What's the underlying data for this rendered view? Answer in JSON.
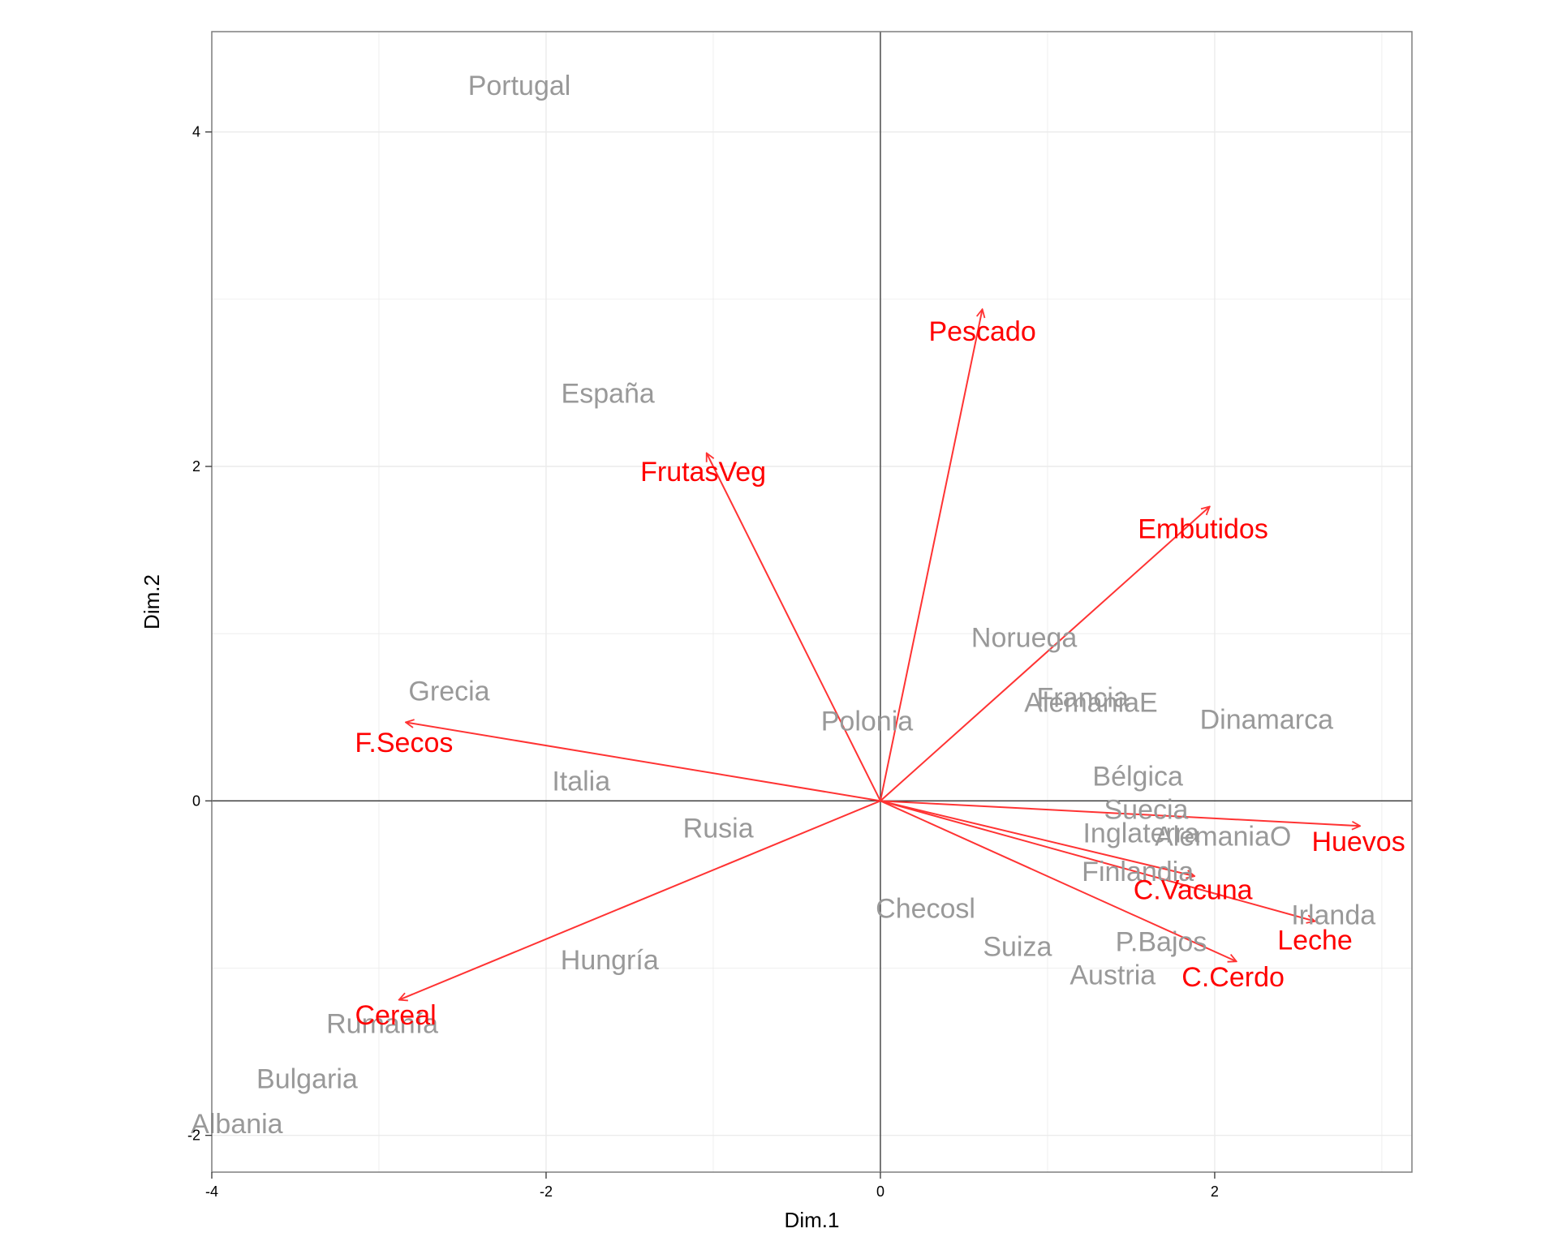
{
  "chart_data": {
    "type": "scatter",
    "subtype": "pca-biplot",
    "title": "",
    "xlabel": "Dim.1",
    "ylabel": "Dim.2",
    "xlim": [
      -4.0,
      3.18
    ],
    "ylim": [
      -2.22,
      4.6
    ],
    "x_ticks": [
      {
        "value": -4,
        "label": "-4"
      },
      {
        "value": -2,
        "label": "-2"
      },
      {
        "value": 0,
        "label": "0"
      },
      {
        "value": 2,
        "label": "2"
      }
    ],
    "y_ticks": [
      {
        "value": -2,
        "label": "-2"
      },
      {
        "value": 0,
        "label": "0"
      },
      {
        "value": 2,
        "label": "2"
      },
      {
        "value": 4,
        "label": "4"
      }
    ],
    "grid": true,
    "reference_lines": {
      "x": 0,
      "y": 0
    },
    "colors": {
      "countries": "#999999",
      "variables": "#ff0000",
      "arrows": "#ff3333",
      "grid": "#ebebeb",
      "frame": "#7f7f7f",
      "reference": "#333333"
    },
    "series": [
      {
        "name": "",
        "kind": "country-labels",
        "points": [
          {
            "label": "Portugal",
            "x": -2.16,
            "y": 4.28
          },
          {
            "label": "España",
            "x": -1.63,
            "y": 2.44
          },
          {
            "label": "Grecia",
            "x": -2.58,
            "y": 0.66
          },
          {
            "label": "Italia",
            "x": -1.79,
            "y": 0.12
          },
          {
            "label": "Polonia",
            "x": -0.08,
            "y": 0.48
          },
          {
            "label": "Rusia",
            "x": -0.97,
            "y": -0.16
          },
          {
            "label": "Hungría",
            "x": -1.62,
            "y": -0.95
          },
          {
            "label": "Rumanía",
            "x": -2.98,
            "y": -1.33
          },
          {
            "label": "Bulgaria",
            "x": -3.43,
            "y": -1.66
          },
          {
            "label": "Albania",
            "x": -3.85,
            "y": -1.93
          },
          {
            "label": "Noruega",
            "x": 0.86,
            "y": 0.98
          },
          {
            "label": "Francia",
            "x": 1.21,
            "y": 0.62
          },
          {
            "label": "AlemaniaE",
            "x": 1.26,
            "y": 0.59
          },
          {
            "label": "Dinamarca",
            "x": 2.31,
            "y": 0.49
          },
          {
            "label": "Bélgica",
            "x": 1.54,
            "y": 0.15
          },
          {
            "label": "Suecia",
            "x": 1.59,
            "y": -0.05
          },
          {
            "label": "Inglaterra",
            "x": 1.56,
            "y": -0.19
          },
          {
            "label": "AlemaniaO",
            "x": 2.05,
            "y": -0.21
          },
          {
            "label": "Finlandia",
            "x": 1.54,
            "y": -0.42
          },
          {
            "label": "Checosl",
            "x": 0.27,
            "y": -0.64
          },
          {
            "label": "Suiza",
            "x": 0.82,
            "y": -0.87
          },
          {
            "label": "P.Bajos",
            "x": 1.68,
            "y": -0.84
          },
          {
            "label": "Austria",
            "x": 1.39,
            "y": -1.04
          },
          {
            "label": "Irlanda",
            "x": 2.71,
            "y": -0.68
          }
        ]
      },
      {
        "name": "",
        "kind": "variable-arrows",
        "vectors": [
          {
            "label": "Pescado",
            "x": 0.61,
            "y": 2.94,
            "label_x": 0.61,
            "label_y": 2.81
          },
          {
            "label": "FrutasVeg",
            "x": -1.04,
            "y": 2.08,
            "label_x": -1.06,
            "label_y": 1.97
          },
          {
            "label": "Embutidos",
            "x": 1.97,
            "y": 1.76,
            "label_x": 1.93,
            "label_y": 1.63
          },
          {
            "label": "F.Secos",
            "x": -2.84,
            "y": 0.47,
            "label_x": -2.85,
            "label_y": 0.35
          },
          {
            "label": "Huevos",
            "x": 2.87,
            "y": -0.15,
            "label_x": 2.86,
            "label_y": -0.24
          },
          {
            "label": "C.Vacuna",
            "x": 1.88,
            "y": -0.45,
            "label_x": 1.87,
            "label_y": -0.53
          },
          {
            "label": "Leche",
            "x": 2.6,
            "y": -0.72,
            "label_x": 2.6,
            "label_y": -0.83
          },
          {
            "label": "C.Cerdo",
            "x": 2.13,
            "y": -0.96,
            "label_x": 2.11,
            "label_y": -1.05
          },
          {
            "label": "Cereal",
            "x": -2.88,
            "y": -1.19,
            "label_x": -2.9,
            "label_y": -1.28
          }
        ]
      }
    ]
  }
}
